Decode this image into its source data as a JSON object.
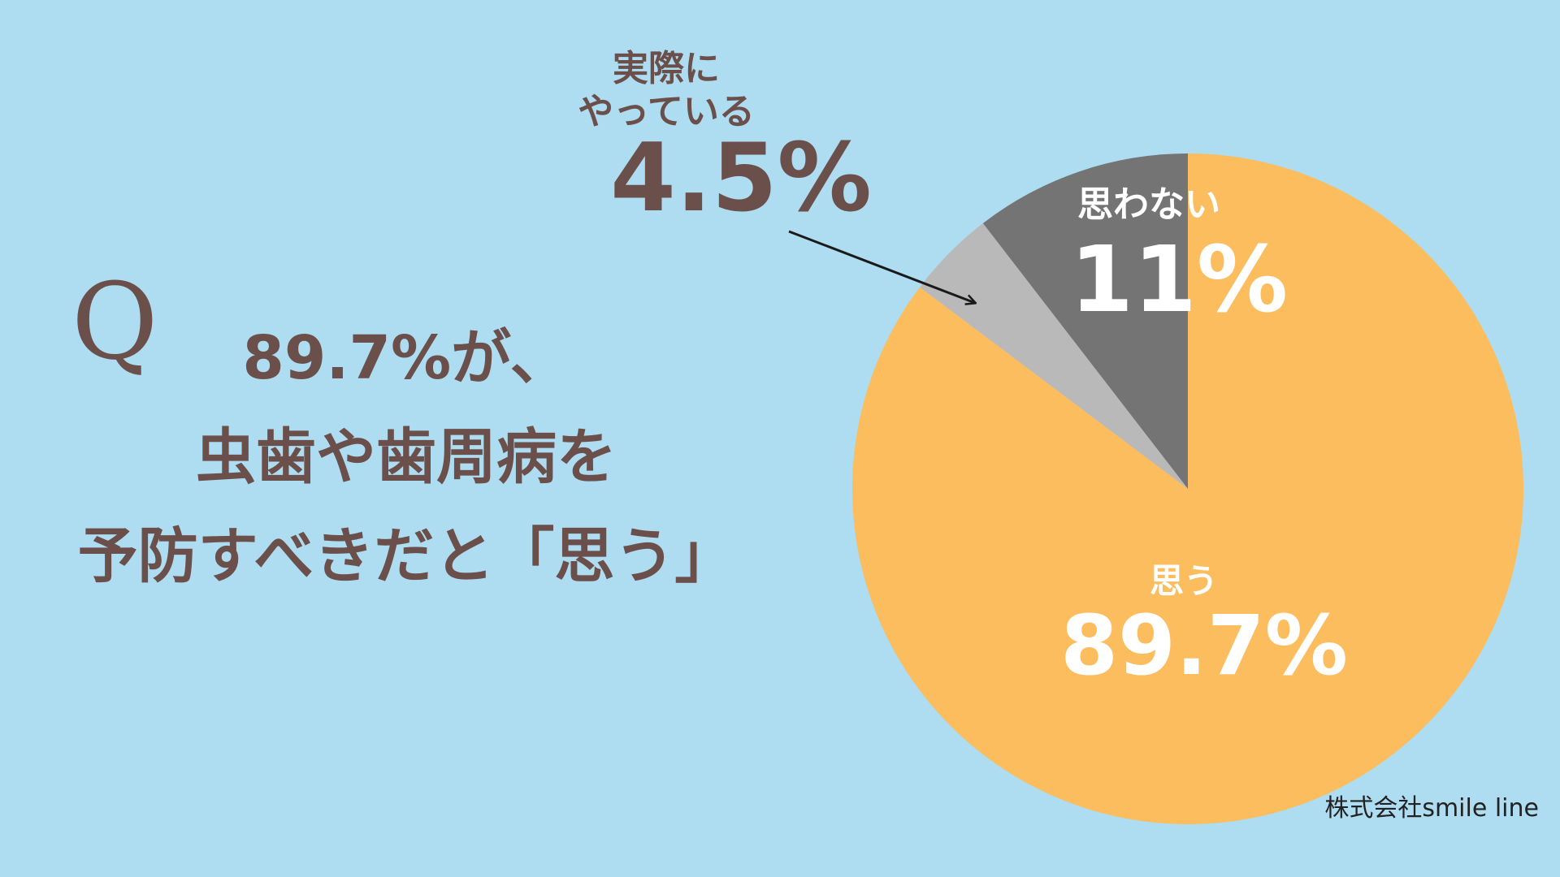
{
  "chart_data": {
    "type": "pie",
    "title_mark": "Q",
    "title": "89.7%が、\n虫歯や歯周病を\n予防すべきだと「思う」",
    "categories": [
      "思わない",
      "実際に\nやっている",
      "思う"
    ],
    "values": [
      11,
      4.5,
      89.7
    ],
    "value_labels": [
      "11%",
      "4.5%",
      "89.7%"
    ],
    "colors": [
      "#747474",
      "#b9b9b9",
      "#fbbd5e"
    ],
    "credit": "株式会社smile line"
  }
}
